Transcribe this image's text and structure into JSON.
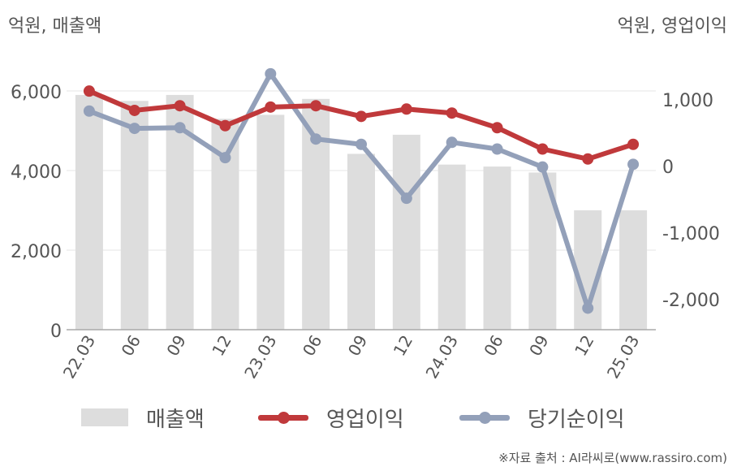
{
  "chart_data": {
    "type": "bar+line",
    "categories": [
      "22.03",
      "06",
      "09",
      "12",
      "23.03",
      "06",
      "09",
      "12",
      "24.03",
      "06",
      "09",
      "12",
      "25.03"
    ],
    "left_axis": {
      "unit": "억원, 매출액",
      "range": [
        0,
        6000
      ],
      "ticks": [
        0,
        2000,
        4000,
        6000
      ],
      "tick_labels": [
        "0",
        "2,000",
        "4,000",
        "6,000"
      ]
    },
    "right_axis": {
      "unit": "억원, 영업이익",
      "range": [
        -2500,
        1400
      ],
      "ticks": [
        -2000,
        -1000,
        0,
        1000
      ],
      "tick_labels": [
        "-2,000",
        "-1,000",
        "0",
        "1,000"
      ]
    },
    "series": [
      {
        "name": "매출액",
        "kind": "bar",
        "axis": "left",
        "color": "#dddddd",
        "values": [
          5900,
          5750,
          5900,
          5300,
          5400,
          5800,
          4420,
          4900,
          4150,
          4100,
          3950,
          3000,
          3000
        ]
      },
      {
        "name": "영업이익",
        "kind": "line",
        "axis": "right",
        "color": "#c0393b",
        "values": [
          1120,
          830,
          900,
          600,
          880,
          900,
          740,
          850,
          790,
          570,
          250,
          100,
          320
        ]
      },
      {
        "name": "당기순이익",
        "kind": "line",
        "axis": "right",
        "color": "#93a0b9",
        "values": [
          820,
          560,
          570,
          120,
          1380,
          400,
          320,
          -490,
          350,
          250,
          -20,
          -2140,
          20
        ]
      }
    ],
    "grid": true,
    "legend_position": "bottom"
  },
  "source": "※자료 출처 : AI라씨로(www.rassiro.com)"
}
